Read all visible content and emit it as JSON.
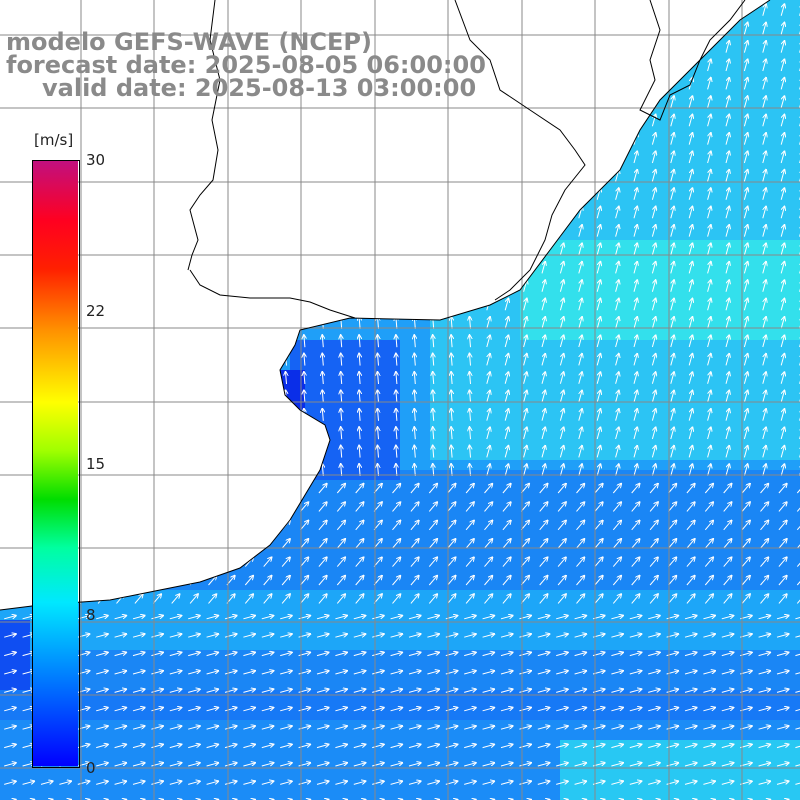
{
  "header": {
    "line1": "modelo GEFS-WAVE (NCEP)",
    "line2": "forecast date: 2025-08-05 06:00:00",
    "line3": "valid date: 2025-08-13 03:00:00"
  },
  "colorbar": {
    "units": "[m/s]",
    "ticks": [
      "30",
      "22",
      "15",
      "8",
      "0"
    ],
    "min": 0,
    "max": 30,
    "colors": [
      "#0000ff",
      "#0080ff",
      "#00e0ff",
      "#00ff80",
      "#00c000",
      "#80ff00",
      "#ffff00",
      "#ffa000",
      "#ff4000",
      "#ff0000",
      "#e00060",
      "#c00080"
    ]
  },
  "map": {
    "land_color": "#ffffff",
    "grid_color": "#888888",
    "coast_color": "#000000",
    "arrow_color": "#ffffff",
    "wind_field": "south-westerly (toward NE), strongest offshore to the east"
  }
}
